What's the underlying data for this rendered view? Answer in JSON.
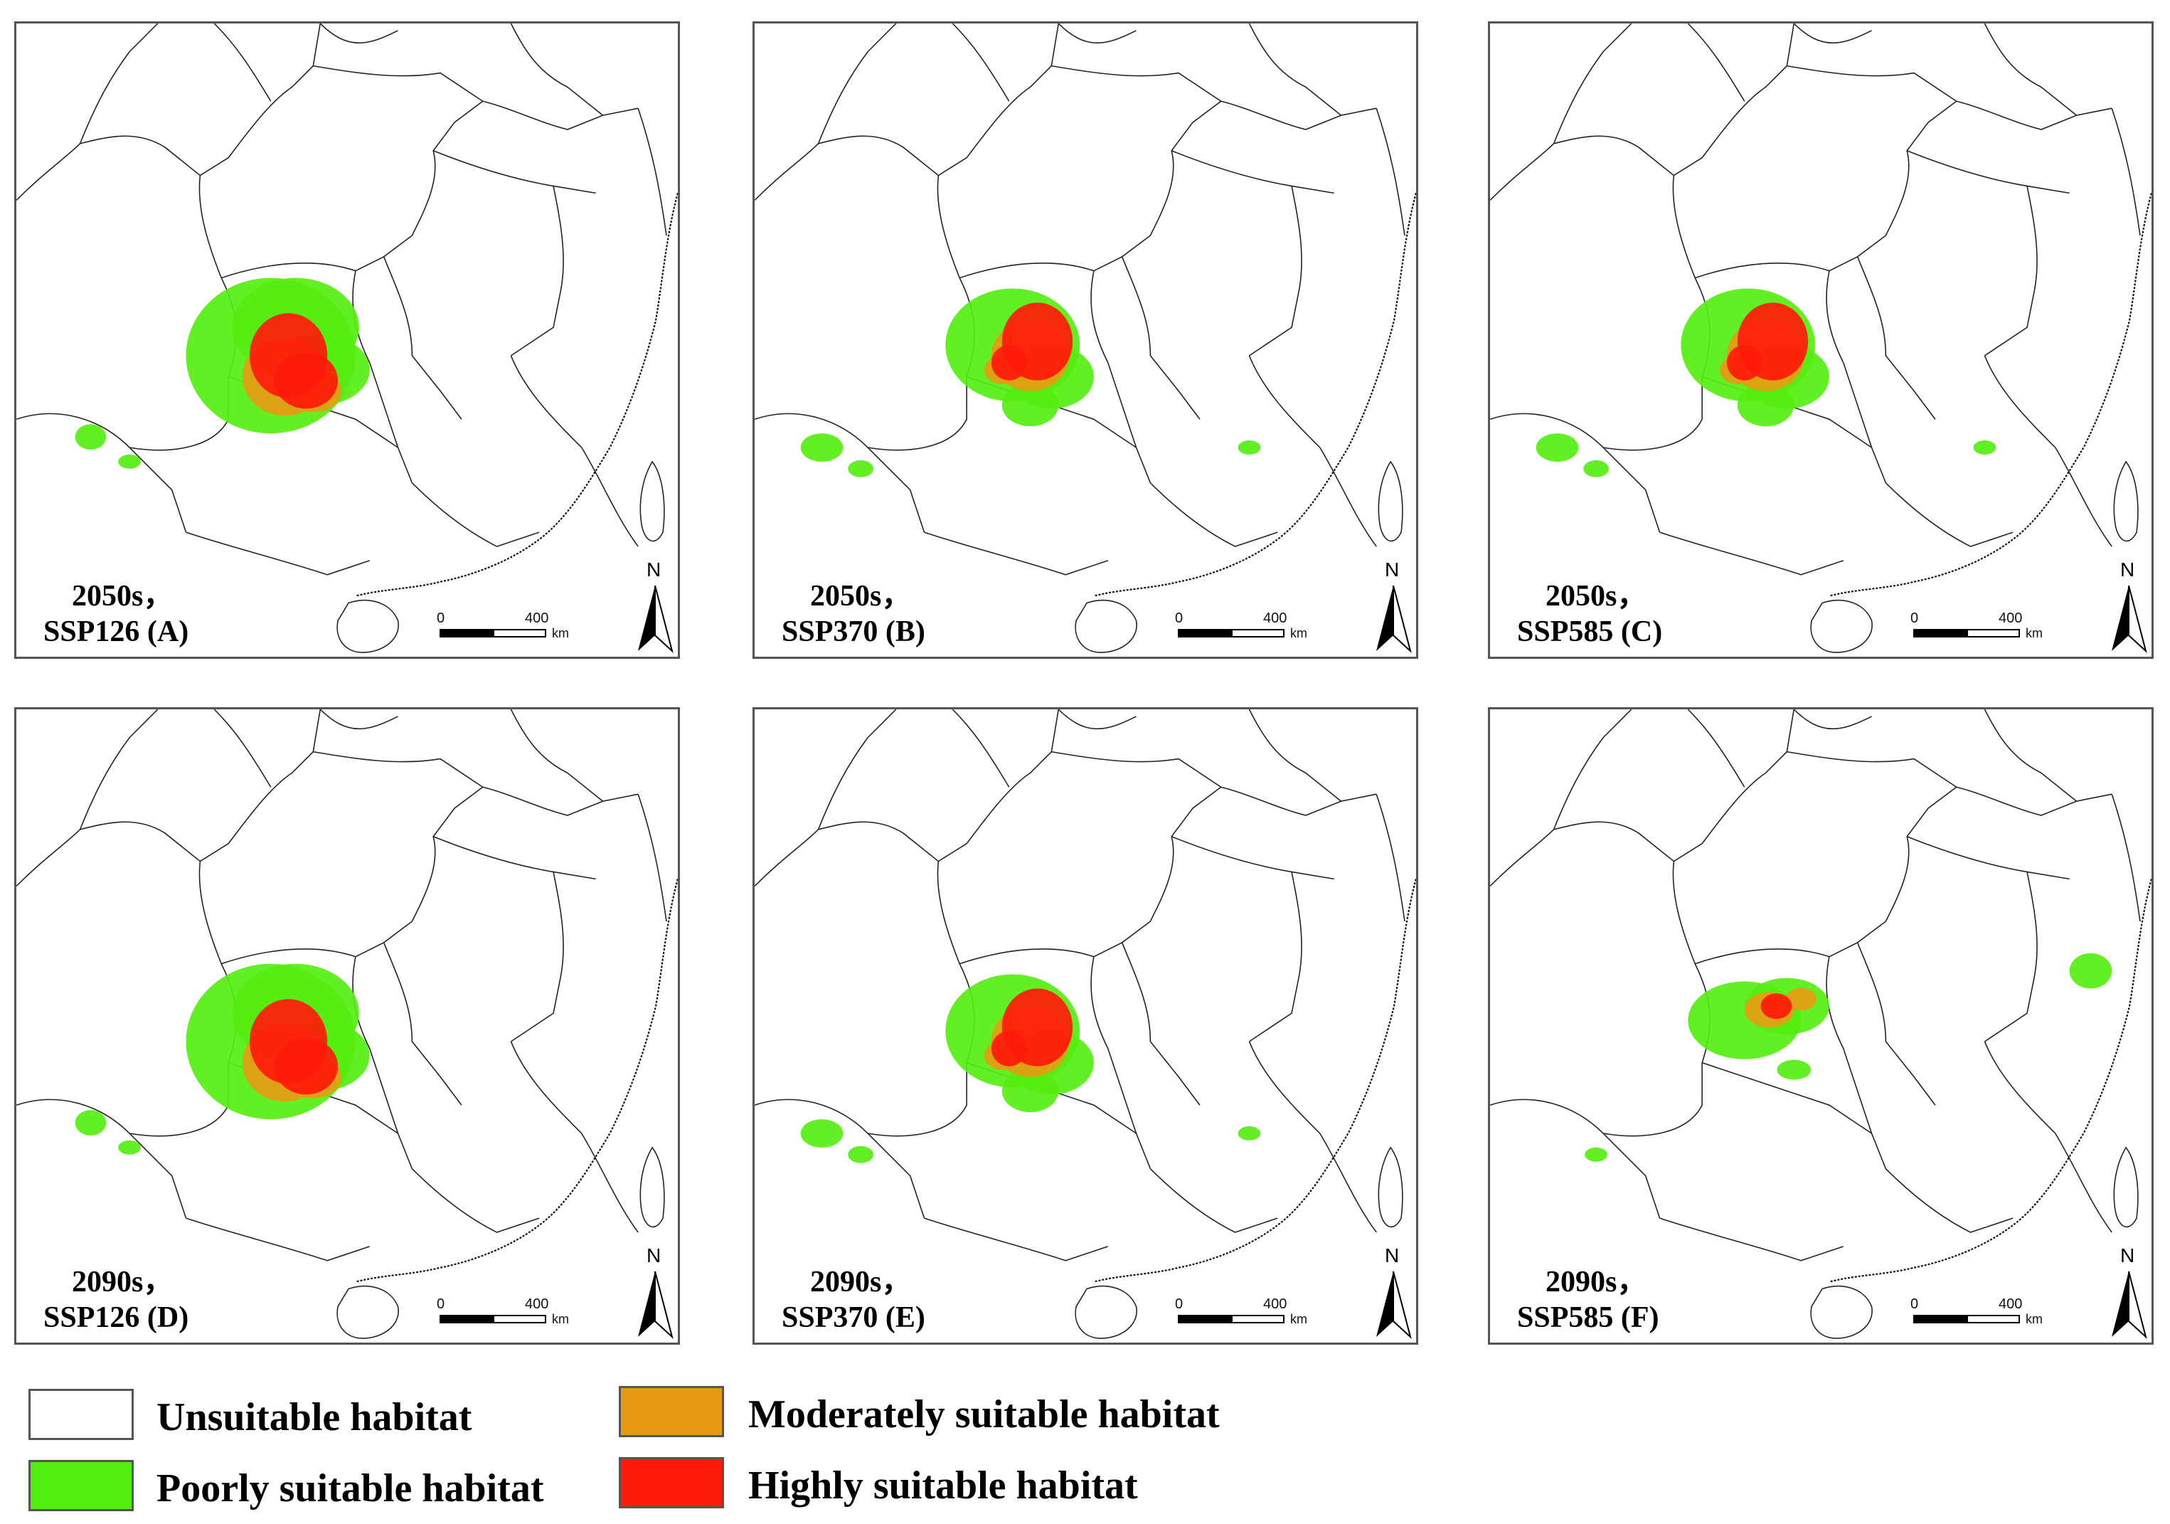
{
  "panels": [
    {
      "id": "A",
      "label_line1": "2050s，",
      "label_line2": "SSP126 (A)",
      "spread": "wide"
    },
    {
      "id": "B",
      "label_line1": "2050s，",
      "label_line2": "SSP370 (B)",
      "spread": "mid"
    },
    {
      "id": "C",
      "label_line1": "2050s，",
      "label_line2": "SSP585 (C)",
      "spread": "mid"
    },
    {
      "id": "D",
      "label_line1": "2090s，",
      "label_line2": "SSP126 (D)",
      "spread": "wide"
    },
    {
      "id": "E",
      "label_line1": "2090s，",
      "label_line2": "SSP370 (E)",
      "spread": "mid"
    },
    {
      "id": "F",
      "label_line1": "2090s，",
      "label_line2": "SSP585 (F)",
      "spread": "small"
    }
  ],
  "scalebar": {
    "start": "0",
    "end": "400",
    "unit": "km"
  },
  "north_arrow": {
    "label": "N"
  },
  "legend": [
    {
      "name": "unsuitable",
      "label": "Unsuitable habitat",
      "color": "#ffffff"
    },
    {
      "name": "poorly",
      "label": "Poorly suitable habitat",
      "color": "#55ee11"
    },
    {
      "name": "moderately",
      "label": "Moderately suitable habitat",
      "color": "#e69b12"
    },
    {
      "name": "highly",
      "label": "Highly suitable habitat",
      "color": "#ff1a0a"
    }
  ]
}
